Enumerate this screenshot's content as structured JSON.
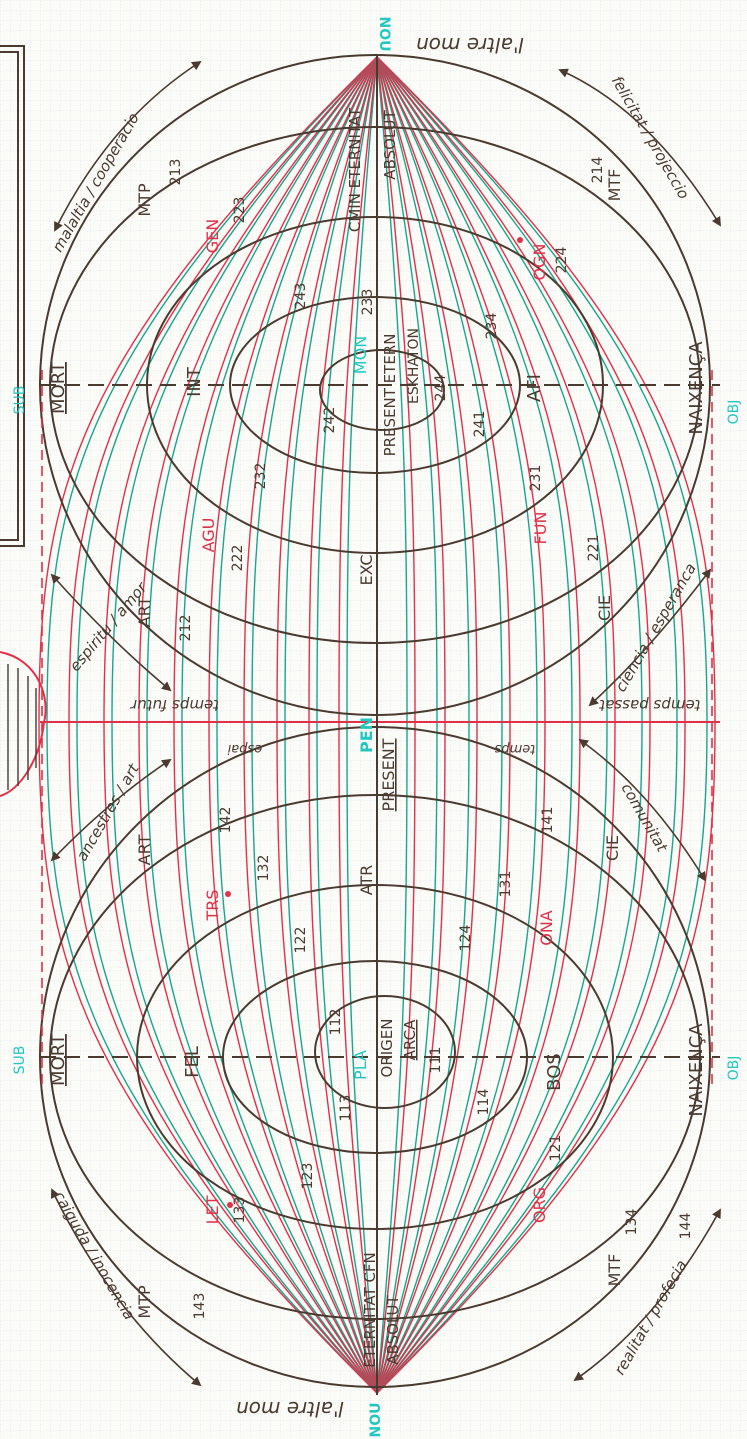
{
  "colors": {
    "paper": "#fbfbf7",
    "grid": "#c6cce3",
    "ink": "#4a3a30",
    "teal": "#1aa58c",
    "red": "#e0304a",
    "cyan": "#22c8c0"
  },
  "poles": {
    "top": "NOU",
    "middle": "PEN",
    "bottom": "NOU"
  },
  "axis_labels": {
    "sub_top": "SUB",
    "obj_top": "OBJ",
    "sub_bottom": "SUB",
    "obj_bottom": "OBJ"
  },
  "upper_half": {
    "mort": "MORT",
    "naixenca": "NAIXENÇA",
    "int": "INT",
    "afi": "AFI",
    "gen": "GEN",
    "ogn": "OGN",
    "agu": "AGU",
    "fun": "FUN",
    "mon": "MON",
    "art": "ART",
    "cie": "CIE",
    "exc": "EXC",
    "mtp": "MTP",
    "mtf": "MTF",
    "etern_1": "CMIN ETERNITAT",
    "etern_2": "ABSOLUT",
    "present_etern": "PRESENT ETERN",
    "eskhaton": "ESKHATON",
    "num_213": "213",
    "num_214": "214",
    "num_223": "223",
    "num_224": "224",
    "num_243": "243",
    "num_234": "234",
    "num_233": "233",
    "num_244": "244",
    "num_242": "242",
    "num_241": "241",
    "num_232": "232",
    "num_231": "231",
    "num_222": "222",
    "num_221": "221",
    "num_212": "212"
  },
  "lower_half": {
    "mort": "MORT",
    "naixenca": "NAIXENÇA",
    "fel": "FEL",
    "bos": "BOS",
    "trs": "TRS",
    "ona": "ONA",
    "let": "LET",
    "org": "ORG",
    "pla": "PLA",
    "atr": "ATR",
    "art": "ART",
    "cie": "CIE",
    "mtp": "MTP",
    "mtf": "MTF",
    "present": "PRESENT",
    "origen": "ORIGEN",
    "arca": "ARCA",
    "etern_1": "ETERNITAT CFN",
    "etern_2": "ABSOLUT",
    "num_142": "142",
    "num_141": "141",
    "num_132": "132",
    "num_131": "131",
    "num_122": "122",
    "num_124": "124",
    "num_112": "112",
    "num_111": "111",
    "num_114": "114",
    "num_113": "113",
    "num_123": "123",
    "num_133": "133",
    "num_143": "143",
    "num_134": "134",
    "num_144": "144",
    "num_121": "121"
  },
  "margin_notes": {
    "top_upside_down": "l'altre mon",
    "bottom_upside_down": "l'altre mon",
    "upper_left_arrow": "malaltia / cooperacio",
    "upper_right_arrow": "felicitat / projeccio",
    "mid_left_upper": "espiritu / amor",
    "mid_left_lower": "ancestres / art",
    "mid_right_upper": "ciencia / esperanca",
    "mid_right_lower": "comunitat",
    "lower_left_arrow": "caiguda / inocencia",
    "lower_right_arrow": "realitat / profecia",
    "center_left": "temps futur",
    "center_right": "temps passat",
    "center_small_left": "espai",
    "center_small_right": "temps"
  }
}
